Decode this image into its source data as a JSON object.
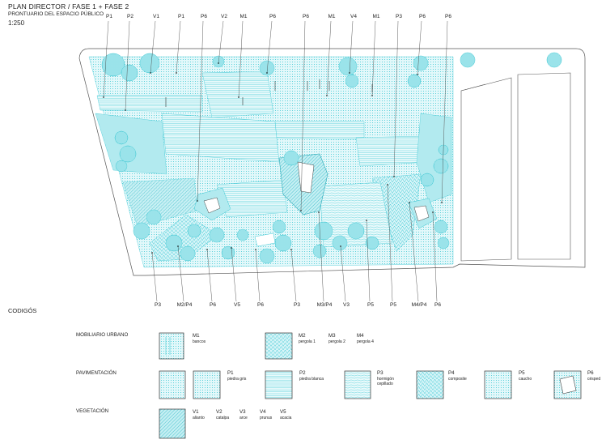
{
  "header": {
    "title": "PLAN DIRECTOR / FASE 1 + FASE 2",
    "subtitle": "PRONTUARIO DEL ESPACIO PÚBLICO",
    "scale": "1:250"
  },
  "top_tags": [
    "P1",
    "P2",
    "V1",
    "P1",
    "P6",
    "V2",
    "M1",
    "P6",
    "P6",
    "M1",
    "V4",
    "M1",
    "P3",
    "P6",
    "P6"
  ],
  "bottom_tags": [
    "P3",
    "M2/P4",
    "P6",
    "V5",
    "P6",
    "P3",
    "M3/P4",
    "V3",
    "P5",
    "P5",
    "M4/P4",
    "P6"
  ],
  "legend": {
    "title": "CODIGÓS",
    "sections": {
      "mobiliario": "MOBILIARIO URBANO",
      "pavimentacion": "PAVIMENTACIÓN",
      "vegetacion": "VEGETACIÓN"
    },
    "mobiliario": [
      {
        "code": "M1",
        "label": "bancos"
      },
      {
        "code": "M2",
        "label": "pergola 1"
      },
      {
        "code": "M3",
        "label": "pergola 2"
      },
      {
        "code": "M4",
        "label": "pergola 4"
      }
    ],
    "pavimentacion": [
      {
        "code": "P1",
        "label": "piedra gris"
      },
      {
        "code": "P2",
        "label": "piedra blanca"
      },
      {
        "code": "P3",
        "label": "hormigón cepillado"
      },
      {
        "code": "P4",
        "label": "composite"
      },
      {
        "code": "P5",
        "label": "caucho"
      },
      {
        "code": "P6",
        "label": "césped"
      }
    ],
    "vegetacion": [
      {
        "code": "V1",
        "label": "alianto"
      },
      {
        "code": "V2",
        "label": "catalpa"
      },
      {
        "code": "V3",
        "label": "arce"
      },
      {
        "code": "V4",
        "label": "prunus"
      },
      {
        "code": "V5",
        "label": "acacia"
      }
    ]
  },
  "colors": {
    "cyan": "#3fc8d4",
    "cyan_light": "#bfeef2",
    "ink": "#222222"
  }
}
